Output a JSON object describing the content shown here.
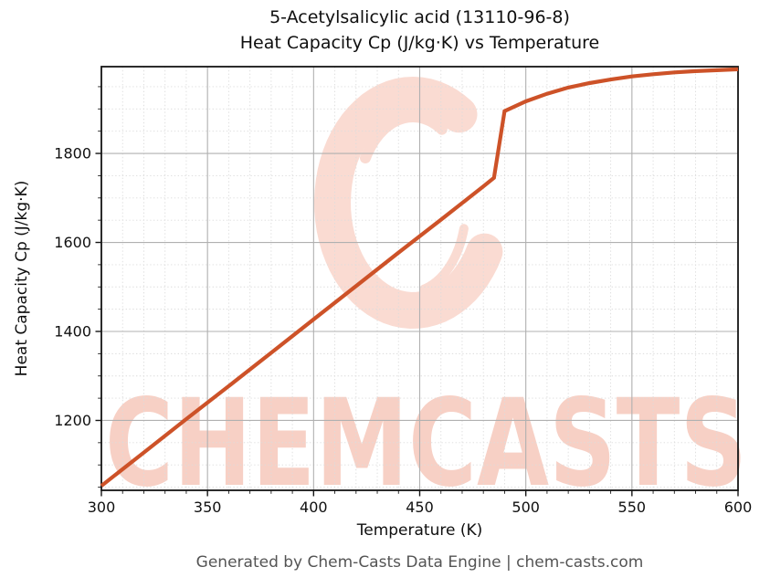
{
  "title": {
    "line1": "5-Acetylsalicylic acid (13110-96-8)",
    "line2": "Heat Capacity Cp (J/kg·K) vs Temperature"
  },
  "footer": {
    "text": "Generated by Chem-Casts Data Engine | chem-casts.com"
  },
  "watermark": {
    "text": "CHEMCASTS",
    "logo": "c-brush-logo",
    "text_color": "#f7d0c5",
    "logo_color": "#fadbd2"
  },
  "chart_data": {
    "type": "line",
    "title": "5-Acetylsalicylic acid (13110-96-8) — Heat Capacity Cp (J/kg·K) vs Temperature",
    "xlabel": "Temperature (K)",
    "ylabel": "Heat Capacity Cp (J/kg·K)",
    "xlim": [
      300,
      600
    ],
    "ylim": [
      1043,
      1995
    ],
    "x_major_ticks": [
      300,
      350,
      400,
      450,
      500,
      550,
      600
    ],
    "x_minor_step": 10,
    "y_major_ticks": [
      1200,
      1400,
      1600,
      1800
    ],
    "y_minor_step": 50,
    "grid": {
      "major": true,
      "minor": true,
      "major_color": "#b0b0b0",
      "minor_color": "#dcdcdc"
    },
    "line_color": "#cd5228",
    "line_width": 4.2,
    "series": [
      {
        "name": "Heat Capacity Cp",
        "points": [
          [
            300,
            1053
          ],
          [
            320,
            1128
          ],
          [
            340,
            1203
          ],
          [
            360,
            1277
          ],
          [
            380,
            1352
          ],
          [
            400,
            1427
          ],
          [
            420,
            1502
          ],
          [
            440,
            1577
          ],
          [
            460,
            1651
          ],
          [
            480,
            1726
          ],
          [
            485,
            1745
          ],
          [
            490,
            1895
          ],
          [
            500,
            1917
          ],
          [
            510,
            1934
          ],
          [
            520,
            1948
          ],
          [
            530,
            1958
          ],
          [
            540,
            1966
          ],
          [
            550,
            1973
          ],
          [
            560,
            1978
          ],
          [
            570,
            1982
          ],
          [
            580,
            1985
          ],
          [
            590,
            1987
          ],
          [
            600,
            1989
          ]
        ]
      }
    ]
  }
}
